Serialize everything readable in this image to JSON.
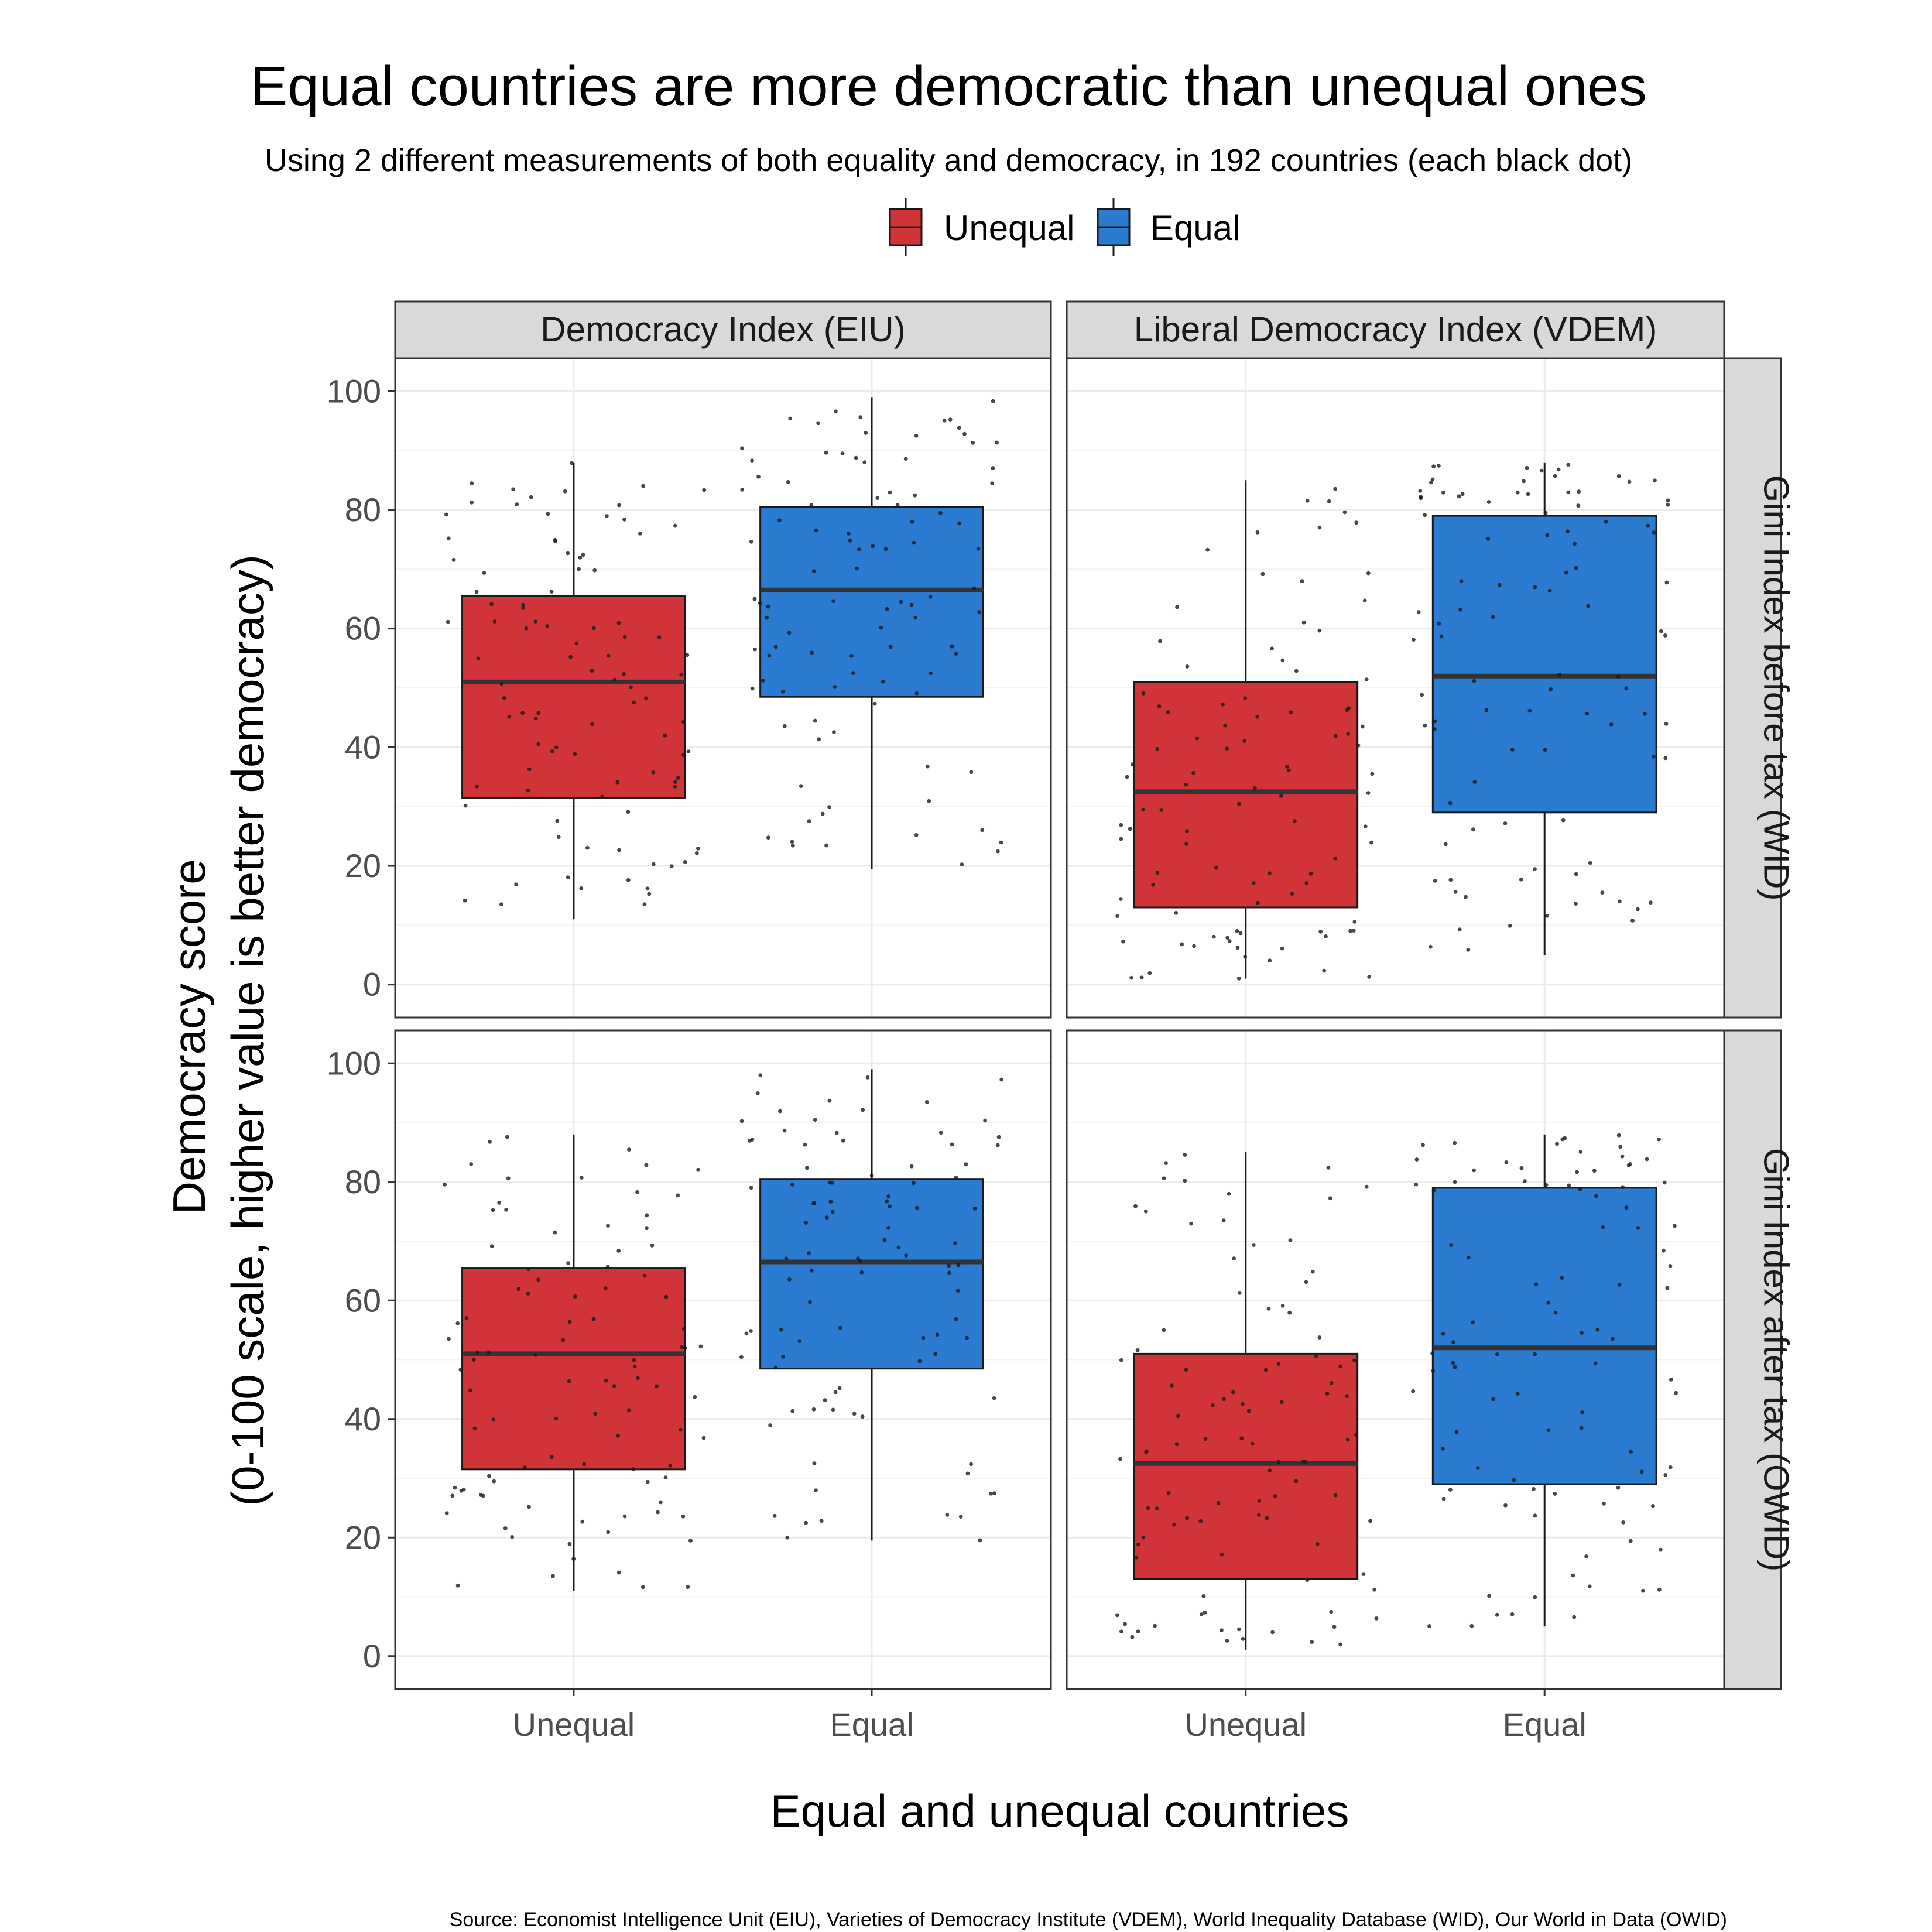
{
  "title": "Equal countries are more democratic than unequal ones",
  "subtitle": "Using 2 different measurements of both equality and democracy, in 192 countries (each black dot)",
  "caption": "Source: Economist Intelligence Unit (EIU), Varieties of Democracy Institute (VDEM), World Inequality Database (WID), Our World in Data (OWID)",
  "legend": {
    "placement": "top",
    "items": [
      {
        "label": "Unequal",
        "color": "#d13438"
      },
      {
        "label": "Equal",
        "color": "#2b7bd0"
      }
    ]
  },
  "chart_data": {
    "type": "boxplot",
    "layout": "facet grid 2x2 with jittered points",
    "xlabel": "Equal and unequal countries",
    "ylabel_line1": "Democracy score",
    "ylabel_line2": "(0-100 scale, higher value is better democracy)",
    "categories": [
      "Unequal",
      "Equal"
    ],
    "ylim": [
      0,
      100
    ],
    "yticks": [
      0,
      20,
      40,
      60,
      80,
      100
    ],
    "grid": true,
    "column_facets": [
      "Democracy Index (EIU)",
      "Liberal Democracy Index (VDEM)"
    ],
    "row_facets": [
      "Gini Index before tax (WID)",
      "Gini Index after tax (OWID)"
    ],
    "panels": [
      {
        "row": 0,
        "col": 0,
        "boxes": [
          {
            "category": "Unequal",
            "min": 11,
            "q1": 31.5,
            "median": 51,
            "q3": 65.5,
            "max": 88
          },
          {
            "category": "Equal",
            "min": 19.5,
            "q1": 48.5,
            "median": 66.5,
            "q3": 80.5,
            "max": 99
          }
        ]
      },
      {
        "row": 0,
        "col": 1,
        "boxes": [
          {
            "category": "Unequal",
            "min": 1,
            "q1": 13,
            "median": 32.5,
            "q3": 51,
            "max": 85
          },
          {
            "category": "Equal",
            "min": 5,
            "q1": 29,
            "median": 52,
            "q3": 79,
            "max": 88
          }
        ]
      },
      {
        "row": 1,
        "col": 0,
        "boxes": [
          {
            "category": "Unequal",
            "min": 11,
            "q1": 31.5,
            "median": 51,
            "q3": 65.5,
            "max": 88
          },
          {
            "category": "Equal",
            "min": 19.5,
            "q1": 48.5,
            "median": 66.5,
            "q3": 80.5,
            "max": 99
          }
        ]
      },
      {
        "row": 1,
        "col": 1,
        "boxes": [
          {
            "category": "Unequal",
            "min": 1,
            "q1": 13,
            "median": 32.5,
            "q3": 51,
            "max": 85
          },
          {
            "category": "Equal",
            "min": 5,
            "q1": 29,
            "median": 52,
            "q3": 79,
            "max": 88
          }
        ]
      }
    ],
    "points_per_panel": 192
  }
}
